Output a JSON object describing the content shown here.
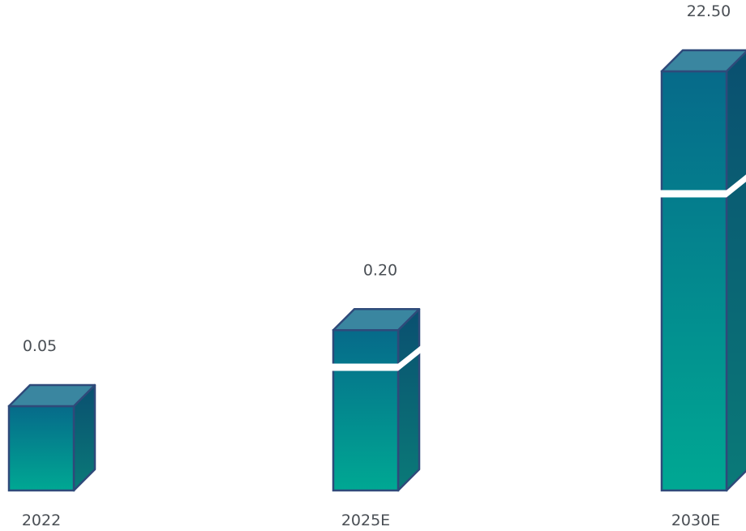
{
  "chart_data": {
    "type": "bar",
    "style": "3d-box",
    "categories": [
      "2022",
      "2025E",
      "2030E"
    ],
    "values": [
      0.05,
      0.2,
      22.5
    ],
    "value_labels": [
      "0.05",
      "0.20",
      "22.50"
    ],
    "axis_break": [
      false,
      true,
      true
    ],
    "title": "",
    "xlabel": "",
    "ylabel": "",
    "grid": false,
    "legend": "none",
    "colors": {
      "front_top": "#066a8a",
      "front_bottom": "#00a893",
      "top_face": "#3a86a0",
      "side_top": "#0a4f70",
      "side_bottom": "#0a7a78",
      "stroke": "#2f4a7a",
      "break_gap": "#ffffff"
    }
  }
}
